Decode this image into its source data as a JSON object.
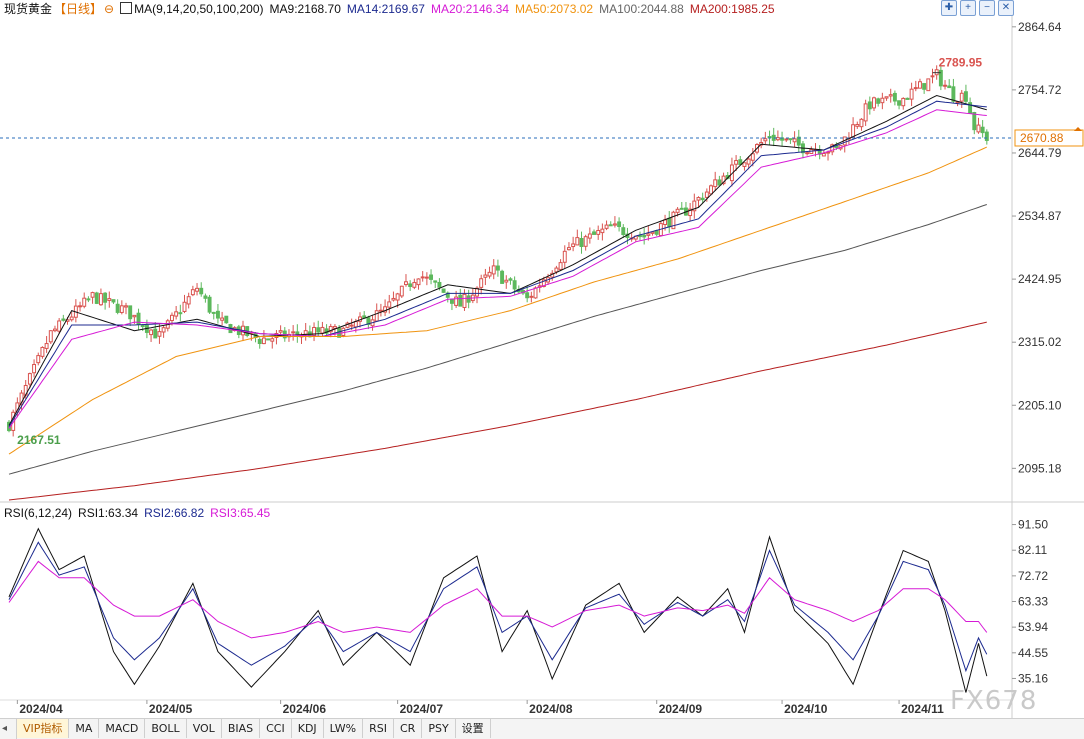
{
  "legend": {
    "symbol": "现货黄金",
    "period": "【日线】",
    "ma_set": "MA(9,14,20,50,100,200)",
    "ma9": "MA9:2168.70",
    "ma14": "MA14:2169.67",
    "ma20": "MA20:2146.34",
    "ma50": "MA50:2073.02",
    "ma100": "MA100:2044.88",
    "ma200": "MA200:1985.25"
  },
  "rsi_legend": {
    "set": "RSI(6,12,24)",
    "rsi1": "RSI1:63.34",
    "rsi2": "RSI2:66.82",
    "rsi3": "RSI3:65.45"
  },
  "colors": {
    "up": "#d9534f",
    "down": "#5cb85c",
    "ma9": "#111111",
    "ma14": "#1c2a8f",
    "ma20": "#d61ad6",
    "ma50": "#f0930f",
    "ma100": "#555555",
    "ma200": "#b51f1f"
  },
  "tabs": [
    "VIP指标",
    "MA",
    "MACD",
    "BOLL",
    "VOL",
    "BIAS",
    "CCI",
    "KDJ",
    "LW%",
    "RSI",
    "CR",
    "PSY",
    "设置"
  ],
  "tools": [
    "crosshair-icon",
    "zoom-in-icon",
    "zoom-out-icon",
    "close-icon"
  ],
  "watermark": "FX678",
  "chart_data": [
    {
      "type": "candlestick",
      "ylim": [
        2040,
        2880
      ],
      "yticks": [
        "2864.64",
        "2754.72",
        "2644.79",
        "2534.87",
        "2424.95",
        "2315.02",
        "2205.10",
        "2095.18"
      ],
      "xticks": [
        "2024/04",
        "2024/05",
        "2024/06",
        "2024/07",
        "2024/08",
        "2024/09",
        "2024/10",
        "2024/11"
      ],
      "high_label": "2789.95",
      "low_label": "2167.51",
      "current_label": "2670.88",
      "current_price": 2670.88,
      "anchors_close": [
        [
          0,
          2172
        ],
        [
          10,
          2330
        ],
        [
          20,
          2395
        ],
        [
          28,
          2370
        ],
        [
          36,
          2325
        ],
        [
          45,
          2410
        ],
        [
          50,
          2350
        ],
        [
          60,
          2320
        ],
        [
          70,
          2330
        ],
        [
          80,
          2335
        ],
        [
          90,
          2370
        ],
        [
          98,
          2435
        ],
        [
          108,
          2380
        ],
        [
          116,
          2440
        ],
        [
          124,
          2390
        ],
        [
          134,
          2480
        ],
        [
          144,
          2515
        ],
        [
          152,
          2500
        ],
        [
          162,
          2545
        ],
        [
          172,
          2610
        ],
        [
          182,
          2675
        ],
        [
          190,
          2655
        ],
        [
          198,
          2650
        ],
        [
          206,
          2730
        ],
        [
          214,
          2740
        ],
        [
          222,
          2780
        ],
        [
          226,
          2745
        ],
        [
          229,
          2745
        ],
        [
          231,
          2690
        ],
        [
          234,
          2672
        ]
      ],
      "ma_lines": [
        {
          "name": "MA9",
          "points": [
            [
              0,
              2170
            ],
            [
              15,
              2370
            ],
            [
              30,
              2335
            ],
            [
              45,
              2355
            ],
            [
              60,
              2325
            ],
            [
              75,
              2330
            ],
            [
              90,
              2370
            ],
            [
              105,
              2415
            ],
            [
              120,
              2400
            ],
            [
              135,
              2450
            ],
            [
              150,
              2510
            ],
            [
              165,
              2550
            ],
            [
              180,
              2660
            ],
            [
              195,
              2650
            ],
            [
              210,
              2700
            ],
            [
              222,
              2745
            ],
            [
              234,
              2720
            ]
          ]
        },
        {
          "name": "MA14",
          "points": [
            [
              0,
              2168
            ],
            [
              15,
              2345
            ],
            [
              30,
              2345
            ],
            [
              45,
              2350
            ],
            [
              60,
              2330
            ],
            [
              75,
              2325
            ],
            [
              90,
              2355
            ],
            [
              105,
              2400
            ],
            [
              120,
              2400
            ],
            [
              135,
              2440
            ],
            [
              150,
              2500
            ],
            [
              165,
              2530
            ],
            [
              180,
              2640
            ],
            [
              195,
              2650
            ],
            [
              210,
              2690
            ],
            [
              222,
              2735
            ],
            [
              234,
              2725
            ]
          ]
        },
        {
          "name": "MA20",
          "points": [
            [
              0,
              2165
            ],
            [
              15,
              2320
            ],
            [
              30,
              2350
            ],
            [
              45,
              2345
            ],
            [
              60,
              2330
            ],
            [
              75,
              2325
            ],
            [
              90,
              2345
            ],
            [
              105,
              2390
            ],
            [
              120,
              2395
            ],
            [
              135,
              2430
            ],
            [
              150,
              2490
            ],
            [
              165,
              2515
            ],
            [
              180,
              2620
            ],
            [
              195,
              2645
            ],
            [
              210,
              2680
            ],
            [
              222,
              2720
            ],
            [
              234,
              2710
            ]
          ]
        },
        {
          "name": "MA50",
          "points": [
            [
              0,
              2120
            ],
            [
              20,
              2215
            ],
            [
              40,
              2290
            ],
            [
              60,
              2325
            ],
            [
              80,
              2325
            ],
            [
              100,
              2335
            ],
            [
              120,
              2370
            ],
            [
              140,
              2420
            ],
            [
              160,
              2460
            ],
            [
              180,
              2510
            ],
            [
              200,
              2560
            ],
            [
              220,
              2610
            ],
            [
              234,
              2655
            ]
          ]
        },
        {
          "name": "MA100",
          "points": [
            [
              0,
              2085
            ],
            [
              20,
              2125
            ],
            [
              40,
              2160
            ],
            [
              60,
              2195
            ],
            [
              80,
              2230
            ],
            [
              100,
              2270
            ],
            [
              120,
              2315
            ],
            [
              140,
              2360
            ],
            [
              160,
              2400
            ],
            [
              180,
              2440
            ],
            [
              200,
              2475
            ],
            [
              220,
              2520
            ],
            [
              234,
              2555
            ]
          ]
        },
        {
          "name": "MA200",
          "points": [
            [
              0,
              2040
            ],
            [
              30,
              2065
            ],
            [
              60,
              2095
            ],
            [
              90,
              2130
            ],
            [
              120,
              2170
            ],
            [
              150,
              2215
            ],
            [
              180,
              2265
            ],
            [
              210,
              2310
            ],
            [
              234,
              2350
            ]
          ]
        }
      ]
    },
    {
      "type": "line",
      "title": "RSI(6,12,24)",
      "ylim": [
        28,
        95
      ],
      "yticks": [
        "91.50",
        "82.11",
        "72.72",
        "63.33",
        "53.94",
        "44.55",
        "35.16"
      ],
      "series": [
        {
          "name": "RSI1",
          "points": [
            [
              0,
              65
            ],
            [
              7,
              90
            ],
            [
              12,
              75
            ],
            [
              18,
              80
            ],
            [
              25,
              45
            ],
            [
              30,
              33
            ],
            [
              36,
              47
            ],
            [
              44,
              70
            ],
            [
              50,
              45
            ],
            [
              58,
              32
            ],
            [
              66,
              45
            ],
            [
              74,
              60
            ],
            [
              80,
              40
            ],
            [
              88,
              52
            ],
            [
              96,
              40
            ],
            [
              104,
              72
            ],
            [
              112,
              80
            ],
            [
              118,
              45
            ],
            [
              124,
              60
            ],
            [
              130,
              35
            ],
            [
              138,
              62
            ],
            [
              146,
              70
            ],
            [
              152,
              52
            ],
            [
              160,
              65
            ],
            [
              166,
              58
            ],
            [
              172,
              68
            ],
            [
              176,
              52
            ],
            [
              182,
              87
            ],
            [
              188,
              60
            ],
            [
              196,
              48
            ],
            [
              202,
              33
            ],
            [
              208,
              58
            ],
            [
              214,
              82
            ],
            [
              220,
              78
            ],
            [
              224,
              60
            ],
            [
              229,
              30
            ],
            [
              232,
              48
            ],
            [
              234,
              36
            ]
          ]
        },
        {
          "name": "RSI2",
          "points": [
            [
              0,
              64
            ],
            [
              7,
              85
            ],
            [
              12,
              73
            ],
            [
              18,
              76
            ],
            [
              25,
              50
            ],
            [
              30,
              42
            ],
            [
              36,
              50
            ],
            [
              44,
              68
            ],
            [
              50,
              48
            ],
            [
              58,
              40
            ],
            [
              66,
              47
            ],
            [
              74,
              58
            ],
            [
              80,
              45
            ],
            [
              88,
              52
            ],
            [
              96,
              45
            ],
            [
              104,
              68
            ],
            [
              112,
              76
            ],
            [
              118,
              52
            ],
            [
              124,
              58
            ],
            [
              130,
              42
            ],
            [
              138,
              61
            ],
            [
              146,
              66
            ],
            [
              152,
              55
            ],
            [
              160,
              63
            ],
            [
              166,
              58
            ],
            [
              172,
              64
            ],
            [
              176,
              56
            ],
            [
              182,
              82
            ],
            [
              188,
              62
            ],
            [
              196,
              52
            ],
            [
              202,
              42
            ],
            [
              208,
              58
            ],
            [
              214,
              78
            ],
            [
              220,
              75
            ],
            [
              224,
              62
            ],
            [
              229,
              38
            ],
            [
              232,
              50
            ],
            [
              234,
              44
            ]
          ]
        },
        {
          "name": "RSI3",
          "points": [
            [
              0,
              63
            ],
            [
              7,
              78
            ],
            [
              12,
              72
            ],
            [
              18,
              72
            ],
            [
              25,
              62
            ],
            [
              30,
              58
            ],
            [
              36,
              58
            ],
            [
              44,
              64
            ],
            [
              50,
              56
            ],
            [
              58,
              50
            ],
            [
              66,
              52
            ],
            [
              74,
              56
            ],
            [
              80,
              52
            ],
            [
              88,
              54
            ],
            [
              96,
              52
            ],
            [
              104,
              62
            ],
            [
              112,
              68
            ],
            [
              118,
              58
            ],
            [
              124,
              58
            ],
            [
              130,
              54
            ],
            [
              138,
              60
            ],
            [
              146,
              62
            ],
            [
              152,
              58
            ],
            [
              160,
              61
            ],
            [
              166,
              60
            ],
            [
              172,
              62
            ],
            [
              176,
              59
            ],
            [
              182,
              72
            ],
            [
              188,
              64
            ],
            [
              196,
              60
            ],
            [
              202,
              56
            ],
            [
              208,
              60
            ],
            [
              214,
              68
            ],
            [
              220,
              68
            ],
            [
              224,
              64
            ],
            [
              229,
              56
            ],
            [
              232,
              56
            ],
            [
              234,
              52
            ]
          ]
        }
      ]
    }
  ]
}
